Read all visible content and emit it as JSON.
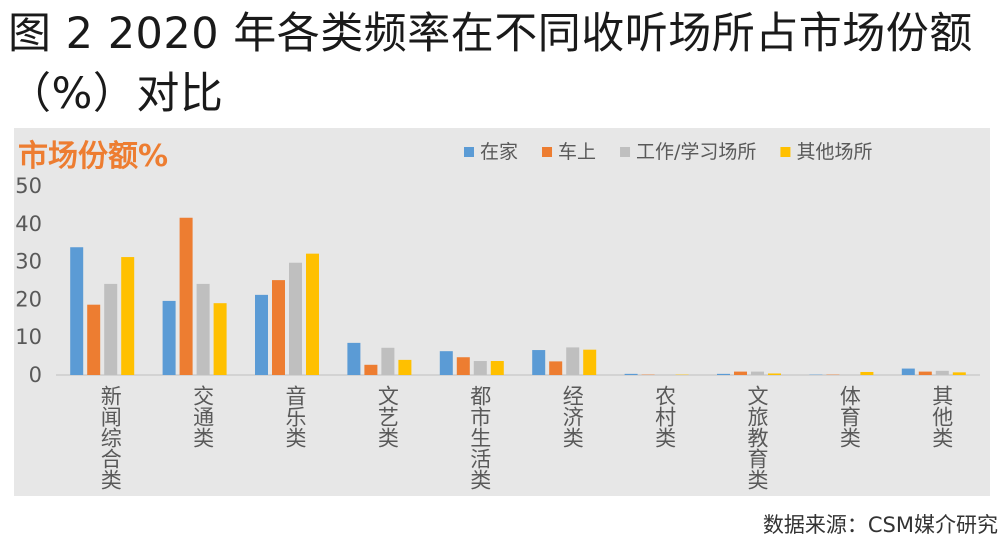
{
  "title": "图 2 2020 年各类频率在不同收听场所占市场份额（%）对比",
  "source": "数据来源：CSM媒介研究",
  "chart_data": {
    "type": "bar",
    "title": "市场份额%",
    "categories": [
      "新闻综合类",
      "交通类",
      "音乐类",
      "文艺类",
      "都市生活类",
      "经济类",
      "农村类",
      "文旅教育类",
      "体育类",
      "其他类"
    ],
    "series": [
      {
        "name": "在家",
        "color": "#5b9bd5",
        "values": [
          33.8,
          19.6,
          21.2,
          8.5,
          6.3,
          6.6,
          0.3,
          0.3,
          0.1,
          1.7
        ]
      },
      {
        "name": "车上",
        "color": "#ed7d31",
        "values": [
          18.6,
          41.6,
          25.1,
          2.7,
          4.7,
          3.6,
          0.1,
          0.9,
          0.1,
          0.9
        ]
      },
      {
        "name": "工作/学习场所",
        "color": "#bfbfbf",
        "values": [
          24.1,
          24.1,
          29.7,
          7.2,
          3.7,
          7.3,
          0.1,
          0.9,
          0.1,
          1.1
        ]
      },
      {
        "name": "其他场所",
        "color": "#ffc000",
        "values": [
          31.2,
          19.0,
          32.1,
          4.0,
          3.7,
          6.7,
          0.1,
          0.4,
          0.8,
          0.7
        ]
      }
    ],
    "ylim": [
      0,
      50
    ],
    "yticks": [
      0,
      10,
      20,
      30,
      40,
      50
    ],
    "grid": false,
    "legend": "top-right"
  }
}
